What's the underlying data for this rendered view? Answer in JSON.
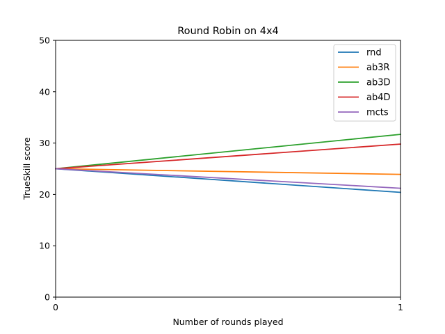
{
  "chart_data": {
    "type": "line",
    "title": "Round Robin on 4x4",
    "xlabel": "Number of rounds played",
    "ylabel": "TrueSkill score",
    "x": [
      0,
      1
    ],
    "xlim": [
      0,
      1
    ],
    "ylim": [
      0,
      50
    ],
    "xticks": [
      0,
      1
    ],
    "yticks": [
      0,
      10,
      20,
      30,
      40,
      50
    ],
    "grid": false,
    "legend_position": "top-right",
    "series": [
      {
        "name": "rnd",
        "color": "#1f77b4",
        "values": [
          25.0,
          20.4
        ]
      },
      {
        "name": "ab3R",
        "color": "#ff7f0e",
        "values": [
          25.0,
          23.9
        ]
      },
      {
        "name": "ab3D",
        "color": "#2ca02c",
        "values": [
          25.0,
          31.7
        ]
      },
      {
        "name": "ab4D",
        "color": "#d62728",
        "values": [
          25.0,
          29.8
        ]
      },
      {
        "name": "mcts",
        "color": "#9467bd",
        "values": [
          25.0,
          21.2
        ]
      }
    ]
  }
}
